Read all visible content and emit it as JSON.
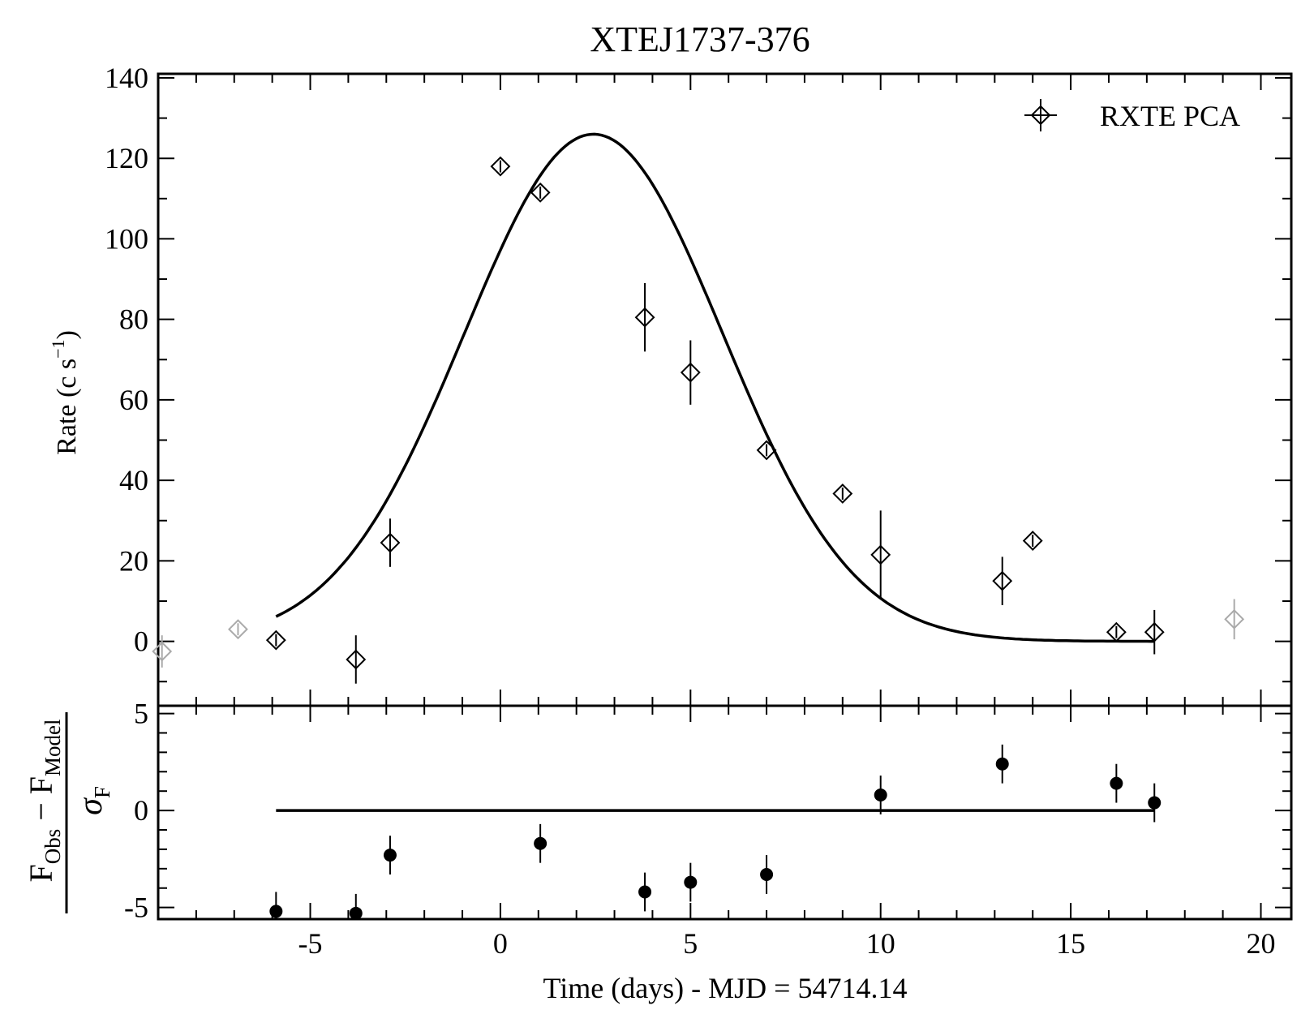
{
  "chart_data": [
    {
      "type": "scatter",
      "panel": "light-curve",
      "title": "XTEJ1737-376",
      "ylabel": "Rate (c s",
      "ylabel_sup": "−1",
      "ylabel_close": ")",
      "xlim": [
        -9,
        20.8
      ],
      "ylim": [
        -16,
        141
      ],
      "yticks": [
        0,
        20,
        40,
        60,
        80,
        100,
        120,
        140
      ],
      "ytick_labels": [
        "0",
        "20",
        "40",
        "60",
        "80",
        "100",
        "120",
        "140"
      ],
      "grid": false,
      "legend": {
        "position": "top-right",
        "label": "RXTE PCA"
      },
      "series": [
        {
          "name": "RXTE PCA",
          "marker": "open-diamond",
          "color": "#000000",
          "points": [
            {
              "x": -5.9,
              "y": 0.3,
              "yerr": 1.5
            },
            {
              "x": -3.8,
              "y": -4.5,
              "yerr": 6
            },
            {
              "x": -2.9,
              "y": 24.5,
              "yerr": 6
            },
            {
              "x": 0.0,
              "y": 118,
              "yerr": 1.5
            },
            {
              "x": 1.05,
              "y": 111.5,
              "yerr": 1.5
            },
            {
              "x": 3.8,
              "y": 80.5,
              "yerr": 8.5
            },
            {
              "x": 5.0,
              "y": 66.8,
              "yerr": 8
            },
            {
              "x": 7.0,
              "y": 47.5,
              "yerr": 1.5
            },
            {
              "x": 9.0,
              "y": 36.7,
              "yerr": 1.5
            },
            {
              "x": 10.0,
              "y": 21.5,
              "yerr": 11
            },
            {
              "x": 13.2,
              "y": 15.0,
              "yerr": 6
            },
            {
              "x": 14.0,
              "y": 25.0,
              "yerr": 1.5
            },
            {
              "x": 16.2,
              "y": 2.3,
              "yerr": 1.5
            },
            {
              "x": 17.2,
              "y": 2.3,
              "yerr": 5.5
            }
          ]
        },
        {
          "marker": "open-diamond",
          "color": "#aaaaaa",
          "points": [
            {
              "x": -8.9,
              "y": -2.5,
              "yerr": 4
            },
            {
              "x": -6.9,
              "y": 3.0,
              "yerr": 1.5
            },
            {
              "x": 19.3,
              "y": 5.5,
              "yerr": 5
            }
          ]
        },
        {
          "type": "line",
          "model": "gaussian",
          "x_range": [
            -5.9,
            17.2
          ],
          "amplitude": 126,
          "center": 2.45,
          "sigma": 3.4,
          "color": "#000000"
        }
      ]
    },
    {
      "type": "scatter",
      "panel": "residuals",
      "xlabel": "Time (days) - MJD = 54714.14",
      "ylabel_top": [
        "F",
        "Obs",
        " − F",
        "Model"
      ],
      "ylabel_bottom": [
        "σ",
        "F"
      ],
      "xlim": [
        -9,
        20.8
      ],
      "ylim": [
        -5.6,
        5.4
      ],
      "xticks": [
        -5,
        0,
        5,
        10,
        15,
        20
      ],
      "xtick_labels": [
        "-5",
        "0",
        "5",
        "10",
        "15",
        "20"
      ],
      "yticks": [
        -5,
        0,
        5
      ],
      "ytick_labels": [
        "-5",
        "0",
        "5"
      ],
      "grid": false,
      "series": [
        {
          "marker": "filled-circle",
          "color": "#000000",
          "points": [
            {
              "x": -5.9,
              "y": -5.2,
              "yerr": 1
            },
            {
              "x": -3.8,
              "y": -5.3,
              "yerr": 1
            },
            {
              "x": -2.9,
              "y": -2.3,
              "yerr": 1
            },
            {
              "x": 1.05,
              "y": -1.7,
              "yerr": 1
            },
            {
              "x": 3.8,
              "y": -4.2,
              "yerr": 1
            },
            {
              "x": 5.0,
              "y": -3.7,
              "yerr": 1
            },
            {
              "x": 7.0,
              "y": -3.3,
              "yerr": 1
            },
            {
              "x": 10.0,
              "y": 0.8,
              "yerr": 1
            },
            {
              "x": 13.2,
              "y": 2.4,
              "yerr": 1
            },
            {
              "x": 16.2,
              "y": 1.4,
              "yerr": 1
            },
            {
              "x": 17.2,
              "y": 0.4,
              "yerr": 1
            }
          ]
        },
        {
          "type": "line",
          "points": [
            {
              "x": -5.9,
              "y": 0
            },
            {
              "x": 17.2,
              "y": 0
            }
          ],
          "color": "#000000"
        }
      ]
    }
  ]
}
